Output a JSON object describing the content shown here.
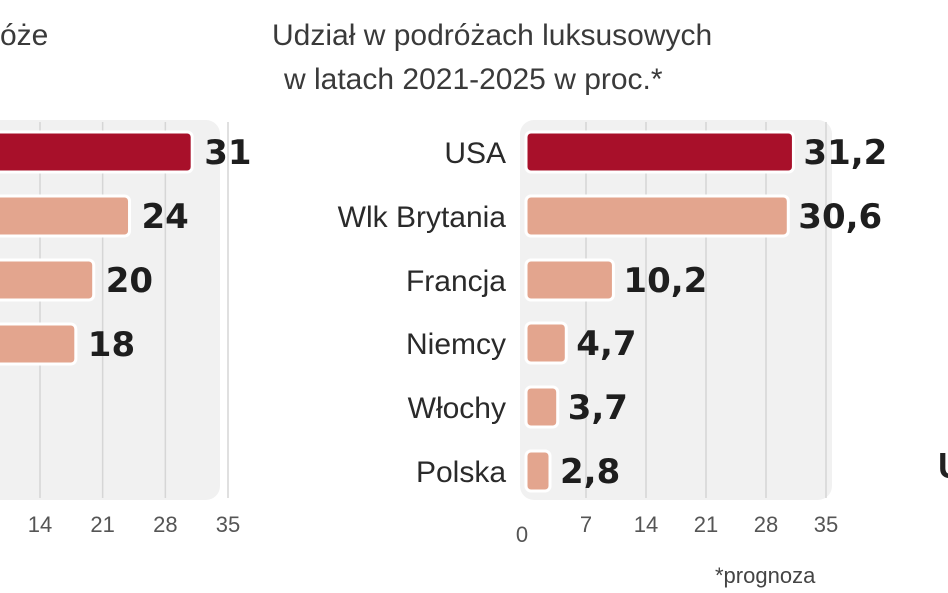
{
  "left_chart": {
    "title_fragment": "óże",
    "chart_data": {
      "type": "bar",
      "orientation": "horizontal",
      "title": "",
      "categories": [
        "",
        "",
        "",
        ""
      ],
      "values": [
        31,
        24,
        20,
        18
      ],
      "value_labels": [
        "31",
        "24",
        "20",
        "18"
      ],
      "highlight_color": "#a8102a",
      "bar_color": "#e3a58e",
      "ticks": [
        "14",
        "21",
        "28",
        "35"
      ],
      "xlim": [
        0,
        35
      ]
    }
  },
  "right_chart": {
    "title_line1": "Udział w podróżach luksusowych",
    "title_line2": "w latach 2021-2025 w proc.*",
    "footnote": "*prognoza",
    "chart_data": {
      "type": "bar",
      "orientation": "horizontal",
      "title": "Udział w podróżach luksusowych w latach 2021-2025 w proc.*",
      "categories": [
        "USA",
        "Wlk Brytania",
        "Francja",
        "Niemcy",
        "Włochy",
        "Polska"
      ],
      "values": [
        31.2,
        30.6,
        10.2,
        4.7,
        3.7,
        2.8
      ],
      "value_labels": [
        "31,2",
        "30,6",
        "10,2",
        "4,7",
        "3,7",
        "2,8"
      ],
      "highlight_color": "#a8102a",
      "bar_color": "#e3a58e",
      "ticks": [
        "0",
        "7",
        "14",
        "21",
        "28",
        "35"
      ],
      "xlim": [
        0,
        35
      ],
      "grid": true
    }
  },
  "right_cut_char": "U"
}
